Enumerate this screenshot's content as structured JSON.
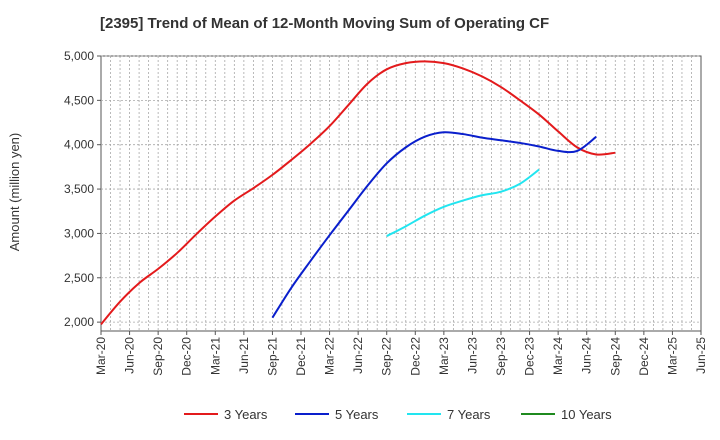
{
  "chart_data": {
    "type": "line",
    "title": "[2395]  Trend of Mean of 12-Month Moving Sum of Operating CF",
    "xlabel": "",
    "ylabel": "Amount (million yen)",
    "ylim": [
      1900,
      5000
    ],
    "yticks": [
      2000,
      2500,
      3000,
      3500,
      4000,
      4500,
      5000
    ],
    "ytick_labels": [
      "2,000",
      "2,500",
      "3,000",
      "3,500",
      "4,000",
      "4,500",
      "5,000"
    ],
    "x_tick_labels": [
      "Mar-20",
      "Jun-20",
      "Sep-20",
      "Dec-20",
      "Mar-21",
      "Jun-21",
      "Sep-21",
      "Dec-21",
      "Mar-22",
      "Jun-22",
      "Sep-22",
      "Dec-22",
      "Mar-23",
      "Jun-23",
      "Sep-23",
      "Dec-23",
      "Mar-24",
      "Jun-24",
      "Sep-24",
      "Dec-24",
      "Mar-25",
      "Jun-25"
    ],
    "grid": true,
    "legend_position": "bottom",
    "series": [
      {
        "name": "3 Years",
        "color": "#e31a1c",
        "start_index": 0,
        "values": [
          1975,
          2230,
          2440,
          2600,
          2780,
          2990,
          3190,
          3370,
          3510,
          3660,
          3830,
          4010,
          4210,
          4450,
          4690,
          4850,
          4920,
          4940,
          4920,
          4860,
          4770,
          4650,
          4500,
          4340,
          4150,
          3970,
          3890,
          3910
        ]
      },
      {
        "name": "5 Years",
        "color": "#0a1fcc",
        "start_index": 18,
        "values": [
          2050,
          2390,
          2690,
          2980,
          3260,
          3540,
          3790,
          3970,
          4090,
          4140,
          4120,
          4080,
          4050,
          4020,
          3980,
          3930,
          3930,
          4090
        ]
      },
      {
        "name": "7 Years",
        "color": "#22e5f0",
        "start_index": 30,
        "values": [
          2970,
          3080,
          3200,
          3300,
          3370,
          3430,
          3470,
          3560,
          3720
        ]
      },
      {
        "name": "10 Years",
        "color": "#1f8a1f",
        "start_index": 0,
        "values": []
      }
    ]
  }
}
